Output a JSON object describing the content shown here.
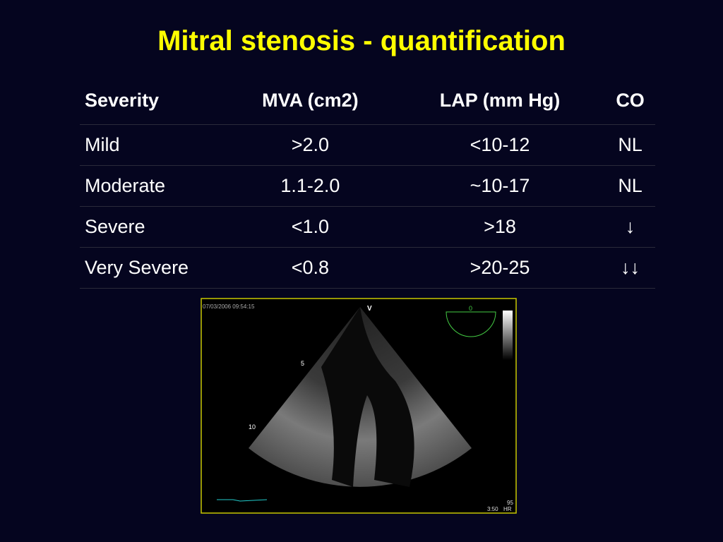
{
  "header": {
    "title": "Mitral stenosis - quantification"
  },
  "table": {
    "columns": [
      "Severity",
      "MVA (cm2)",
      "LAP (mm Hg)",
      "CO"
    ],
    "rows": [
      [
        "Mild",
        ">2.0",
        "<10-12",
        "NL"
      ],
      [
        "Moderate",
        "1.1-2.0",
        "~10-17",
        "NL"
      ],
      [
        "Severe",
        "<1.0",
        ">18",
        "↓"
      ],
      [
        "Very Severe",
        "<0.8",
        ">20-25",
        "↓↓"
      ]
    ]
  },
  "image": {
    "timestamp": "07/03/2006 09:54:15",
    "marker": "V",
    "angle": "0",
    "depth_5": "5",
    "depth_10": "10",
    "heart_rate": "95",
    "hr_label": "HR",
    "time": "3:50"
  }
}
